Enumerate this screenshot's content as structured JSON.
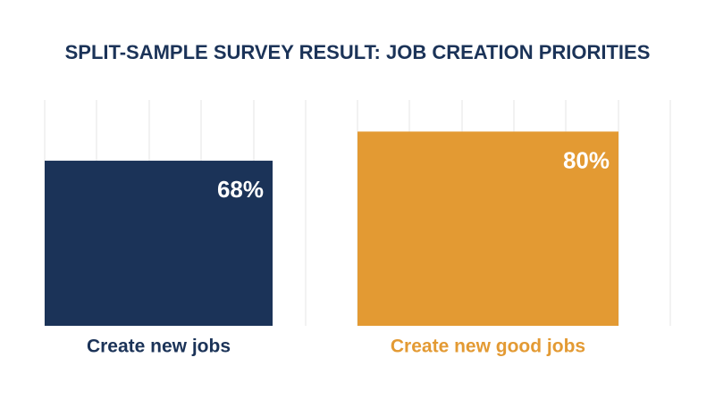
{
  "chart_data": {
    "type": "bar",
    "title": "SPLIT-SAMPLE SURVEY RESULT: JOB CREATION PRIORITIES",
    "categories": [
      "Create new jobs",
      "Create new good jobs"
    ],
    "values": [
      68,
      80
    ],
    "value_labels": [
      "68%",
      "80%"
    ],
    "colors": [
      "#1b3358",
      "#e39a33"
    ]
  }
}
